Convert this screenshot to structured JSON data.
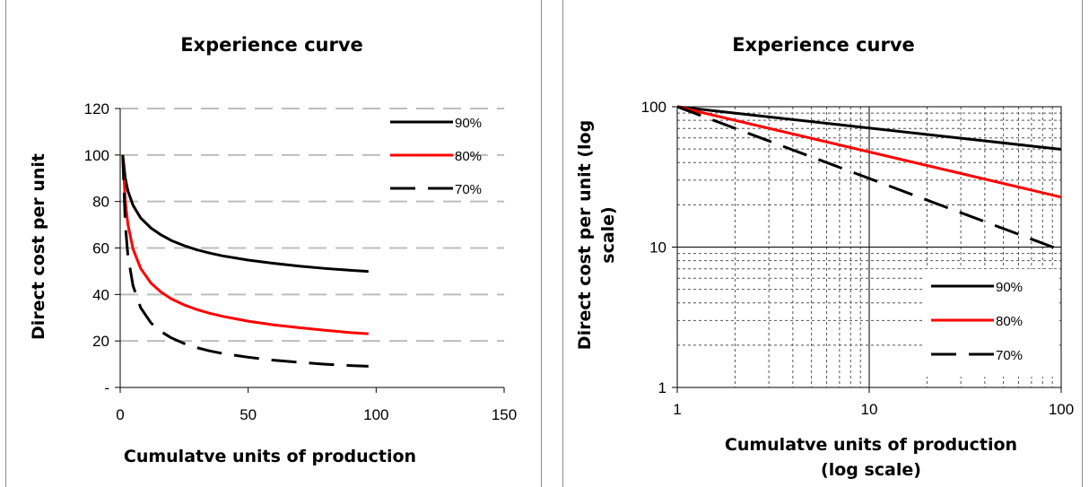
{
  "chart_data": [
    {
      "type": "line",
      "title": "Experience curve",
      "xlabel": "Cumulatve units of production",
      "ylabel": "Direct cost per unit",
      "xlim": [
        0,
        150
      ],
      "ylim": [
        0,
        120
      ],
      "x_ticks": [
        0,
        50,
        100,
        150
      ],
      "x_tick_labels": [
        "0",
        "50",
        "100",
        "150"
      ],
      "y_ticks": [
        0,
        20,
        40,
        60,
        80,
        100,
        120
      ],
      "y_tick_labels": [
        "-",
        "20",
        "40",
        "60",
        "80",
        "100",
        "120"
      ],
      "grid": "horizontal dashed",
      "legend_position": "top-right",
      "series": [
        {
          "name": "90%",
          "color": "#000000",
          "dash": "solid",
          "x": [
            1,
            2,
            3,
            5,
            8,
            12,
            16,
            20,
            25,
            30,
            35,
            40,
            50,
            60,
            70,
            80,
            90,
            97
          ],
          "y": [
            100,
            90,
            84.6,
            78.4,
            72.9,
            68.6,
            65.6,
            63.2,
            61,
            59.2,
            57.8,
            56.6,
            54.8,
            53.4,
            52.2,
            51.2,
            50.4,
            49.9
          ]
        },
        {
          "name": "80%",
          "color": "#ff0000",
          "dash": "solid",
          "x": [
            1,
            2,
            3,
            5,
            8,
            12,
            16,
            20,
            25,
            30,
            35,
            40,
            50,
            60,
            70,
            80,
            90,
            97
          ],
          "y": [
            100,
            80,
            70.2,
            59.6,
            51.2,
            44.9,
            41,
            38.1,
            35.5,
            33.5,
            31.9,
            30.6,
            28.5,
            26.9,
            25.7,
            24.6,
            23.6,
            23.1
          ]
        },
        {
          "name": "70%",
          "color": "#000000",
          "dash": "dashed",
          "x": [
            1,
            2,
            3,
            5,
            8,
            12,
            16,
            20,
            25,
            30,
            35,
            40,
            50,
            60,
            70,
            80,
            90,
            97
          ],
          "y": [
            100,
            70,
            56.8,
            43.8,
            34.3,
            27.8,
            24,
            21.3,
            18.9,
            17.1,
            15.7,
            14.6,
            13,
            11.7,
            10.8,
            10,
            9.4,
            9.1
          ]
        }
      ]
    },
    {
      "type": "line",
      "title": "Experience curve",
      "xlabel_lines": [
        "Cumulatve units of production",
        "(log scale)"
      ],
      "ylabel_lines": [
        "Direct cost per unit (log",
        "scale)"
      ],
      "x_scale": "log",
      "y_scale": "log",
      "xlim": [
        1,
        100
      ],
      "ylim": [
        1,
        100
      ],
      "x_tick_labels": [
        "1",
        "10",
        "100"
      ],
      "y_tick_labels": [
        "1",
        "10",
        "100"
      ],
      "grid": "major solid, minor dashed",
      "legend_position": "bottom-right",
      "series": [
        {
          "name": "90%",
          "color": "#000000",
          "dash": "solid",
          "x": [
            1,
            100
          ],
          "y": [
            100,
            49.7
          ]
        },
        {
          "name": "80%",
          "color": "#ff0000",
          "dash": "solid",
          "x": [
            1,
            100
          ],
          "y": [
            100,
            22.7
          ]
        },
        {
          "name": "70%",
          "color": "#000000",
          "dash": "dashed",
          "x": [
            1,
            100
          ],
          "y": [
            100,
            9.5
          ]
        }
      ]
    }
  ]
}
